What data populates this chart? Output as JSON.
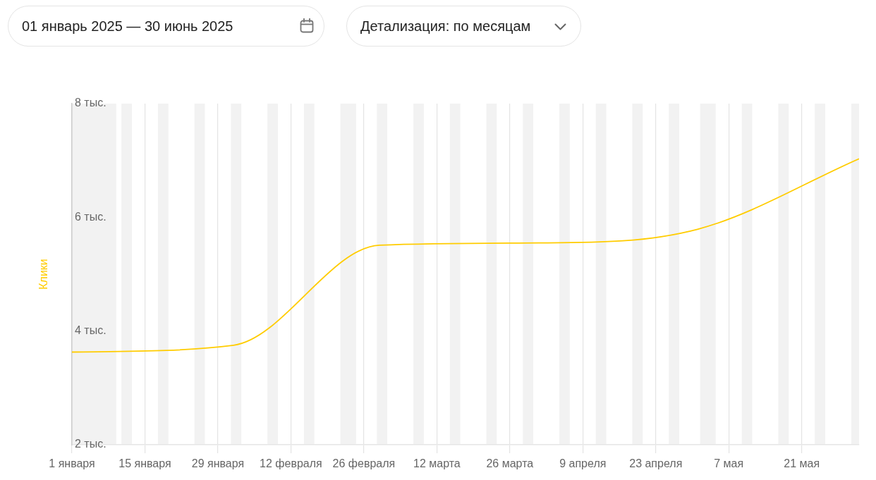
{
  "chart_data": {
    "type": "line",
    "ylabel": "Клики",
    "annotations": [
      "01 январь 2025 — 30 июнь 2025",
      "Детализация: по месяцам"
    ],
    "x": [
      "2025-01-01",
      "2025-02-01",
      "2025-03-01",
      "2025-04-01",
      "2025-05-01",
      "2025-06-01"
    ],
    "series": [
      {
        "color": "#ffcc00",
        "values": [
          3.63,
          3.75,
          5.51,
          5.55,
          5.79,
          7.03
        ]
      }
    ],
    "xlim": [
      "2025-01-01",
      "2025-06-01"
    ],
    "xticks": [
      {
        "value": "2025-01-01",
        "label": "1 января"
      },
      {
        "value": "2025-01-15",
        "label": "15 января"
      },
      {
        "value": "2025-01-29",
        "label": "29 января"
      },
      {
        "value": "2025-02-12",
        "label": "12 февраля"
      },
      {
        "value": "2025-02-26",
        "label": "26 февраля"
      },
      {
        "value": "2025-03-12",
        "label": "12 марта"
      },
      {
        "value": "2025-03-26",
        "label": "26 марта"
      },
      {
        "value": "2025-04-09",
        "label": "9 апреля"
      },
      {
        "value": "2025-04-23",
        "label": "23 апреля"
      },
      {
        "value": "2025-05-07",
        "label": "7 мая"
      },
      {
        "value": "2025-05-21",
        "label": "21 мая"
      }
    ],
    "ylim": [
      2,
      8
    ],
    "yticks": [
      {
        "value": 2,
        "label": "2 тыс."
      },
      {
        "value": 4,
        "label": "4 тыс."
      },
      {
        "value": 6,
        "label": "6 тыс."
      },
      {
        "value": 8,
        "label": "8 тыс."
      }
    ],
    "grid": "x",
    "marker": "none",
    "bands": [
      {
        "axis": "x",
        "from": "2025-01-01",
        "to": "2025-01-09T12:00",
        "color": "#f2f2f2"
      },
      {
        "axis": "x",
        "from": "2025-01-10T12:00",
        "to": "2025-01-12T12:00",
        "color": "#f2f2f2"
      },
      {
        "axis": "x",
        "from": "2025-01-17T12:00",
        "to": "2025-01-19T12:00",
        "color": "#f2f2f2"
      },
      {
        "axis": "x",
        "from": "2025-01-24T12:00",
        "to": "2025-01-26T12:00",
        "color": "#f2f2f2"
      },
      {
        "axis": "x",
        "from": "2025-01-31T12:00",
        "to": "2025-02-02T12:00",
        "color": "#f2f2f2"
      },
      {
        "axis": "x",
        "from": "2025-02-07T12:00",
        "to": "2025-02-09T12:00",
        "color": "#f2f2f2"
      },
      {
        "axis": "x",
        "from": "2025-02-14T12:00",
        "to": "2025-02-16T12:00",
        "color": "#f2f2f2"
      },
      {
        "axis": "x",
        "from": "2025-02-21T12:00",
        "to": "2025-02-24T12:00",
        "color": "#f2f2f2"
      },
      {
        "axis": "x",
        "from": "2025-02-28T12:00",
        "to": "2025-03-02T12:00",
        "color": "#f2f2f2"
      },
      {
        "axis": "x",
        "from": "2025-03-07T12:00",
        "to": "2025-03-09T12:00",
        "color": "#f2f2f2"
      },
      {
        "axis": "x",
        "from": "2025-03-14T12:00",
        "to": "2025-03-16T12:00",
        "color": "#f2f2f2"
      },
      {
        "axis": "x",
        "from": "2025-03-21T12:00",
        "to": "2025-03-23T12:00",
        "color": "#f2f2f2"
      },
      {
        "axis": "x",
        "from": "2025-03-28T12:00",
        "to": "2025-03-30T12:00",
        "color": "#f2f2f2"
      },
      {
        "axis": "x",
        "from": "2025-04-04T12:00",
        "to": "2025-04-06T12:00",
        "color": "#f2f2f2"
      },
      {
        "axis": "x",
        "from": "2025-04-11T12:00",
        "to": "2025-04-13T12:00",
        "color": "#f2f2f2"
      },
      {
        "axis": "x",
        "from": "2025-04-18T12:00",
        "to": "2025-04-20T12:00",
        "color": "#f2f2f2"
      },
      {
        "axis": "x",
        "from": "2025-04-25T12:00",
        "to": "2025-04-27T12:00",
        "color": "#f2f2f2"
      },
      {
        "axis": "x",
        "from": "2025-05-01T12:00",
        "to": "2025-05-04T12:00",
        "color": "#f2f2f2"
      },
      {
        "axis": "x",
        "from": "2025-05-09T12:00",
        "to": "2025-05-11T12:00",
        "color": "#f2f2f2"
      },
      {
        "axis": "x",
        "from": "2025-05-16T12:00",
        "to": "2025-05-18T12:00",
        "color": "#f2f2f2"
      },
      {
        "axis": "x",
        "from": "2025-05-23T12:00",
        "to": "2025-05-25T12:00",
        "color": "#f2f2f2"
      },
      {
        "axis": "x",
        "from": "2025-05-30T12:00",
        "to": "2025-06-01",
        "color": "#f2f2f2"
      }
    ]
  }
}
